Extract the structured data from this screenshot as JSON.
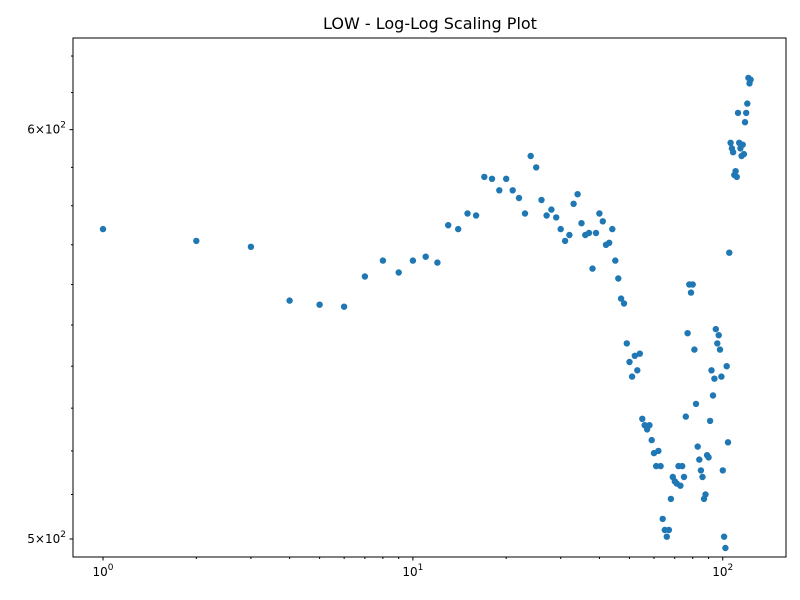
{
  "chart_data": {
    "type": "scatter",
    "title": "LOW  - Log-Log Scaling Plot",
    "xlabel": "",
    "ylabel": "",
    "xscale": "log",
    "yscale": "log",
    "xlim": [
      0.8,
      160
    ],
    "ylim": [
      496,
      625
    ],
    "grid": false,
    "color": "#1f77b4",
    "x_ticks": [
      {
        "value": 1,
        "base": "10",
        "exp": "0"
      },
      {
        "value": 10,
        "base": "10",
        "exp": "1"
      },
      {
        "value": 100,
        "base": "10",
        "exp": "2"
      }
    ],
    "y_ticks": [
      {
        "value": 500,
        "mant": "5",
        "base": "10",
        "exp": "2"
      },
      {
        "value": 600,
        "mant": "6",
        "base": "10",
        "exp": "2"
      }
    ],
    "x": [
      1,
      2,
      3,
      4,
      5,
      6,
      7,
      8,
      9,
      10,
      11,
      12,
      13,
      14,
      15,
      16,
      17,
      18,
      19,
      20,
      21,
      22,
      23,
      24,
      25,
      26,
      27,
      28,
      29,
      30,
      31,
      32,
      33,
      34,
      35,
      36,
      37,
      38,
      39,
      40,
      41,
      42,
      43,
      44,
      45,
      46,
      47,
      48,
      49,
      50,
      51,
      52,
      53,
      54,
      55,
      56,
      57,
      58,
      59,
      60,
      61,
      62,
      63,
      64,
      65,
      66,
      67,
      68,
      69,
      70,
      71,
      72,
      73,
      74,
      75,
      76,
      77,
      78,
      79,
      80,
      81,
      82,
      83,
      84,
      85,
      86,
      87,
      88,
      89,
      90,
      91,
      92,
      93,
      94,
      95,
      96,
      97,
      98,
      99,
      100,
      101,
      102,
      103,
      104,
      105,
      106,
      107,
      108,
      109,
      110,
      111,
      112,
      113,
      114,
      115,
      116,
      117,
      118,
      119,
      120,
      121,
      122,
      123
    ],
    "y": [
      574,
      571,
      569.5,
      556,
      555,
      554.5,
      562,
      566,
      563,
      566,
      567,
      565.5,
      575,
      574,
      578,
      577.5,
      587.5,
      587,
      584,
      587,
      584,
      582,
      578,
      593,
      590,
      581.5,
      577.5,
      579,
      577,
      574,
      571,
      572.5,
      580.5,
      583,
      575.5,
      572.5,
      573,
      564,
      573,
      578,
      576,
      570,
      570.5,
      574,
      566,
      561.5,
      556.5,
      555.3,
      545.5,
      541,
      537.5,
      542.5,
      539,
      543,
      527.5,
      526,
      525,
      526,
      522.5,
      519.5,
      516.5,
      520,
      516.5,
      504.5,
      502,
      500.5,
      502,
      509,
      514,
      513,
      512.5,
      516.5,
      512,
      516.5,
      514,
      528,
      548,
      560,
      558,
      560,
      544,
      531,
      521,
      518,
      515.5,
      514,
      509,
      510,
      519,
      518.5,
      527,
      539,
      533,
      537,
      549,
      545.5,
      547.5,
      544,
      537.5,
      515.5,
      500.5,
      498,
      540,
      522,
      568,
      596.5,
      595,
      594,
      588,
      589,
      587.5,
      604.5,
      596.5,
      595,
      593,
      596,
      593.5,
      602,
      604.5,
      607,
      614,
      612.5,
      613.5
    ]
  }
}
